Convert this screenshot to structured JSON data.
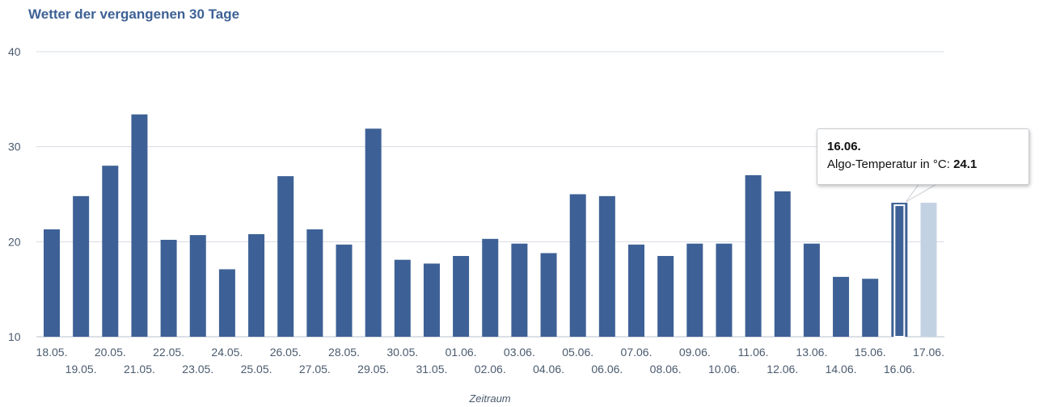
{
  "chart_data": {
    "type": "bar",
    "title": "Wetter der vergangenen 30 Tage",
    "xlabel": "Zeitraum",
    "ylabel": "",
    "ylim": [
      10,
      40
    ],
    "yticks": [
      10,
      20,
      30,
      40
    ],
    "grid": true,
    "categories": [
      "18.05.",
      "19.05.",
      "20.05.",
      "21.05.",
      "22.05.",
      "23.05.",
      "24.05.",
      "25.05.",
      "26.05.",
      "27.05.",
      "28.05.",
      "29.05.",
      "30.05.",
      "31.05.",
      "01.06.",
      "02.06.",
      "03.06.",
      "04.06.",
      "05.06.",
      "06.06.",
      "07.06.",
      "08.06.",
      "09.06.",
      "10.06.",
      "11.06.",
      "12.06.",
      "13.06.",
      "14.06.",
      "15.06.",
      "16.06.",
      "17.06."
    ],
    "series": [
      {
        "name": "Algo-Temperatur in °C",
        "color": "#3d6196",
        "values": [
          21.3,
          24.8,
          28.0,
          33.4,
          20.2,
          20.7,
          17.1,
          20.8,
          26.9,
          21.3,
          19.7,
          31.9,
          18.1,
          17.7,
          18.5,
          20.3,
          19.8,
          18.8,
          25.0,
          24.8,
          19.7,
          18.5,
          19.8,
          19.8,
          27.0,
          25.3,
          19.8,
          16.3,
          16.1,
          24.1,
          24.1
        ]
      }
    ],
    "highlight_index": 29,
    "faded_index": 30,
    "faded_color": "#c3d2e3"
  },
  "tooltip": {
    "date": "16.06.",
    "label": "Algo-Temperatur in °C:",
    "value": "24.1"
  }
}
